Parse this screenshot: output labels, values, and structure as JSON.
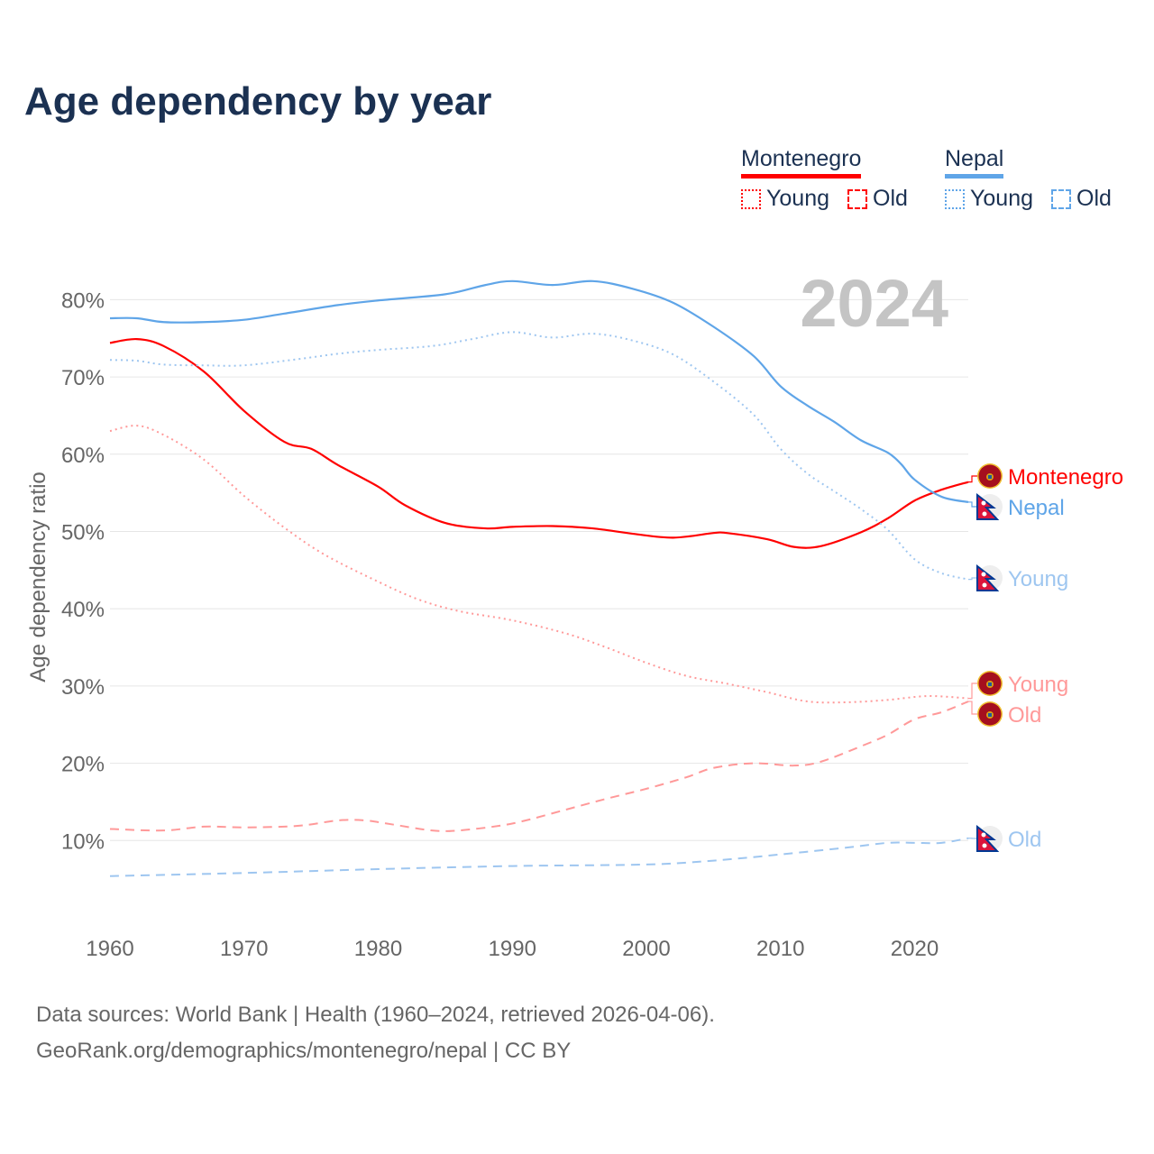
{
  "title": "Age dependency by year",
  "legend": {
    "groups": [
      {
        "name": "Montenegro",
        "color": "#ff0000",
        "young": "Young",
        "old": "Old"
      },
      {
        "name": "Nepal",
        "color": "#5fa5e8",
        "young": "Young",
        "old": "Old"
      }
    ]
  },
  "source": {
    "line1": "Data sources: World Bank | Health (1960–2024, retrieved 2026-04-06).",
    "line2": "GeoRank.org/demographics/montenegro/nepal | CC BY"
  },
  "chart_data": {
    "type": "line",
    "title": "Age dependency by year",
    "year_label": "2024",
    "xlabel": "",
    "ylabel": "Age dependency ratio",
    "xlim": [
      1960,
      2024
    ],
    "ylim": [
      0,
      85
    ],
    "xticks": [
      "1960",
      "1970",
      "1980",
      "1990",
      "2000",
      "2010",
      "2020"
    ],
    "yticks": [
      "10%",
      "20%",
      "30%",
      "40%",
      "50%",
      "60%",
      "70%",
      "80%"
    ],
    "grid": true,
    "legend_position": "top-right",
    "series": [
      {
        "name": "Montenegro",
        "end_label": "Montenegro",
        "country": "Montenegro",
        "style": "solid",
        "color": "#ff0000",
        "x": [
          1960,
          1962,
          1964,
          1967,
          1970,
          1973,
          1975,
          1977,
          1980,
          1982,
          1985,
          1988,
          1990,
          1993,
          1996,
          1999,
          2002,
          2005,
          2006,
          2009,
          2011,
          2013,
          2016,
          2018,
          2020,
          2022,
          2024
        ],
        "y": [
          74.4,
          74.9,
          74.0,
          70.7,
          65.6,
          61.6,
          60.7,
          58.6,
          55.8,
          53.4,
          51.1,
          50.4,
          50.6,
          50.7,
          50.4,
          49.7,
          49.2,
          49.8,
          49.8,
          49.0,
          48.0,
          48.1,
          49.9,
          51.7,
          54.0,
          55.4,
          56.4
        ]
      },
      {
        "name": "Nepal",
        "end_label": "Nepal",
        "country": "Nepal",
        "style": "solid",
        "color": "#5fa5e8",
        "x": [
          1960,
          1962,
          1964,
          1967,
          1970,
          1973,
          1977,
          1980,
          1985,
          1988,
          1990,
          1993,
          1996,
          1999,
          2002,
          2005,
          2008,
          2010,
          2012,
          2014,
          2016,
          2018,
          2019,
          2020,
          2022,
          2024
        ],
        "y": [
          77.6,
          77.6,
          77.1,
          77.1,
          77.4,
          78.2,
          79.3,
          79.9,
          80.7,
          81.9,
          82.4,
          81.9,
          82.4,
          81.4,
          79.6,
          76.5,
          72.7,
          68.8,
          66.3,
          64.2,
          61.8,
          60.2,
          58.7,
          56.7,
          54.5,
          53.8
        ]
      },
      {
        "name": "Nepal Young",
        "end_label": "Young",
        "country": "Nepal",
        "style": "dotted",
        "color": "#9ec6f0",
        "x": [
          1960,
          1962,
          1964,
          1967,
          1970,
          1974,
          1977,
          1980,
          1984,
          1987,
          1990,
          1993,
          1996,
          1999,
          2002,
          2005,
          2008,
          2010,
          2012,
          2014,
          2016,
          2018,
          2020,
          2022,
          2024
        ],
        "y": [
          72.2,
          72.1,
          71.6,
          71.5,
          71.5,
          72.3,
          73.0,
          73.5,
          74.0,
          74.9,
          75.8,
          75.1,
          75.6,
          74.7,
          72.9,
          69.4,
          65.1,
          60.7,
          57.5,
          55.2,
          52.9,
          50.2,
          46.4,
          44.6,
          43.8
        ]
      },
      {
        "name": "Montenegro Young",
        "end_label": "Young",
        "country": "Montenegro",
        "style": "dotted",
        "color": "#ff9999",
        "x": [
          1960,
          1962,
          1964,
          1967,
          1970,
          1973,
          1976,
          1980,
          1983,
          1986,
          1990,
          1994,
          1997,
          2000,
          2003,
          2006,
          2009,
          2012,
          2015,
          2018,
          2021,
          2024
        ],
        "y": [
          63.0,
          63.7,
          62.5,
          59.3,
          54.6,
          50.5,
          47.0,
          43.5,
          41.2,
          39.7,
          38.5,
          36.8,
          35.0,
          33.0,
          31.3,
          30.3,
          29.2,
          28.0,
          27.9,
          28.2,
          28.7,
          28.4
        ]
      },
      {
        "name": "Montenegro Old",
        "end_label": "Old",
        "country": "Montenegro",
        "style": "dashed",
        "color": "#ff9999",
        "x": [
          1960,
          1964,
          1967,
          1970,
          1974,
          1977,
          1979,
          1981,
          1984,
          1986,
          1989,
          1991,
          1994,
          1997,
          2000,
          2003,
          2005,
          2008,
          2011,
          2013,
          2016,
          2018,
          2020,
          2022,
          2024
        ],
        "y": [
          11.5,
          11.3,
          11.8,
          11.7,
          11.9,
          12.6,
          12.6,
          12.1,
          11.3,
          11.3,
          11.9,
          12.6,
          14.0,
          15.4,
          16.7,
          18.2,
          19.4,
          20.0,
          19.7,
          20.2,
          22.2,
          23.7,
          25.7,
          26.6,
          28.0
        ]
      },
      {
        "name": "Nepal Old",
        "end_label": "Old",
        "country": "Nepal",
        "style": "dashed",
        "color": "#9ec6f0",
        "x": [
          1960,
          1970,
          1980,
          1990,
          2000,
          2005,
          2010,
          2015,
          2018,
          2020,
          2022,
          2024
        ],
        "y": [
          5.4,
          5.8,
          6.3,
          6.7,
          6.9,
          7.4,
          8.2,
          9.1,
          9.7,
          9.7,
          9.7,
          10.3
        ]
      }
    ]
  }
}
